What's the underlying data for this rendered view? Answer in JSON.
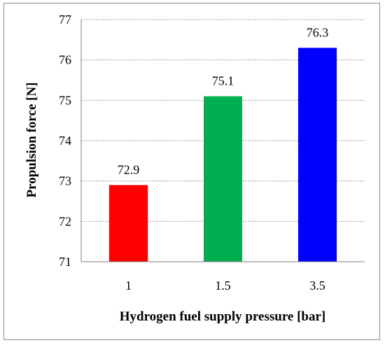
{
  "chart_data": {
    "type": "bar",
    "categories": [
      "1",
      "1.5",
      "3.5"
    ],
    "values": [
      72.9,
      75.1,
      76.3
    ],
    "data_labels": [
      "72.9",
      "75.1",
      "76.3"
    ],
    "bar_colors": [
      "#ff0000",
      "#00b050",
      "#0000ff"
    ],
    "title": "",
    "xlabel": "Hydrogen fuel supply pressure [bar]",
    "ylabel": "Propulsion force [N]",
    "ylim": [
      71,
      77
    ],
    "yticks": [
      "71",
      "72",
      "73",
      "74",
      "75",
      "76",
      "77"
    ],
    "grid": true,
    "legend": "none"
  }
}
